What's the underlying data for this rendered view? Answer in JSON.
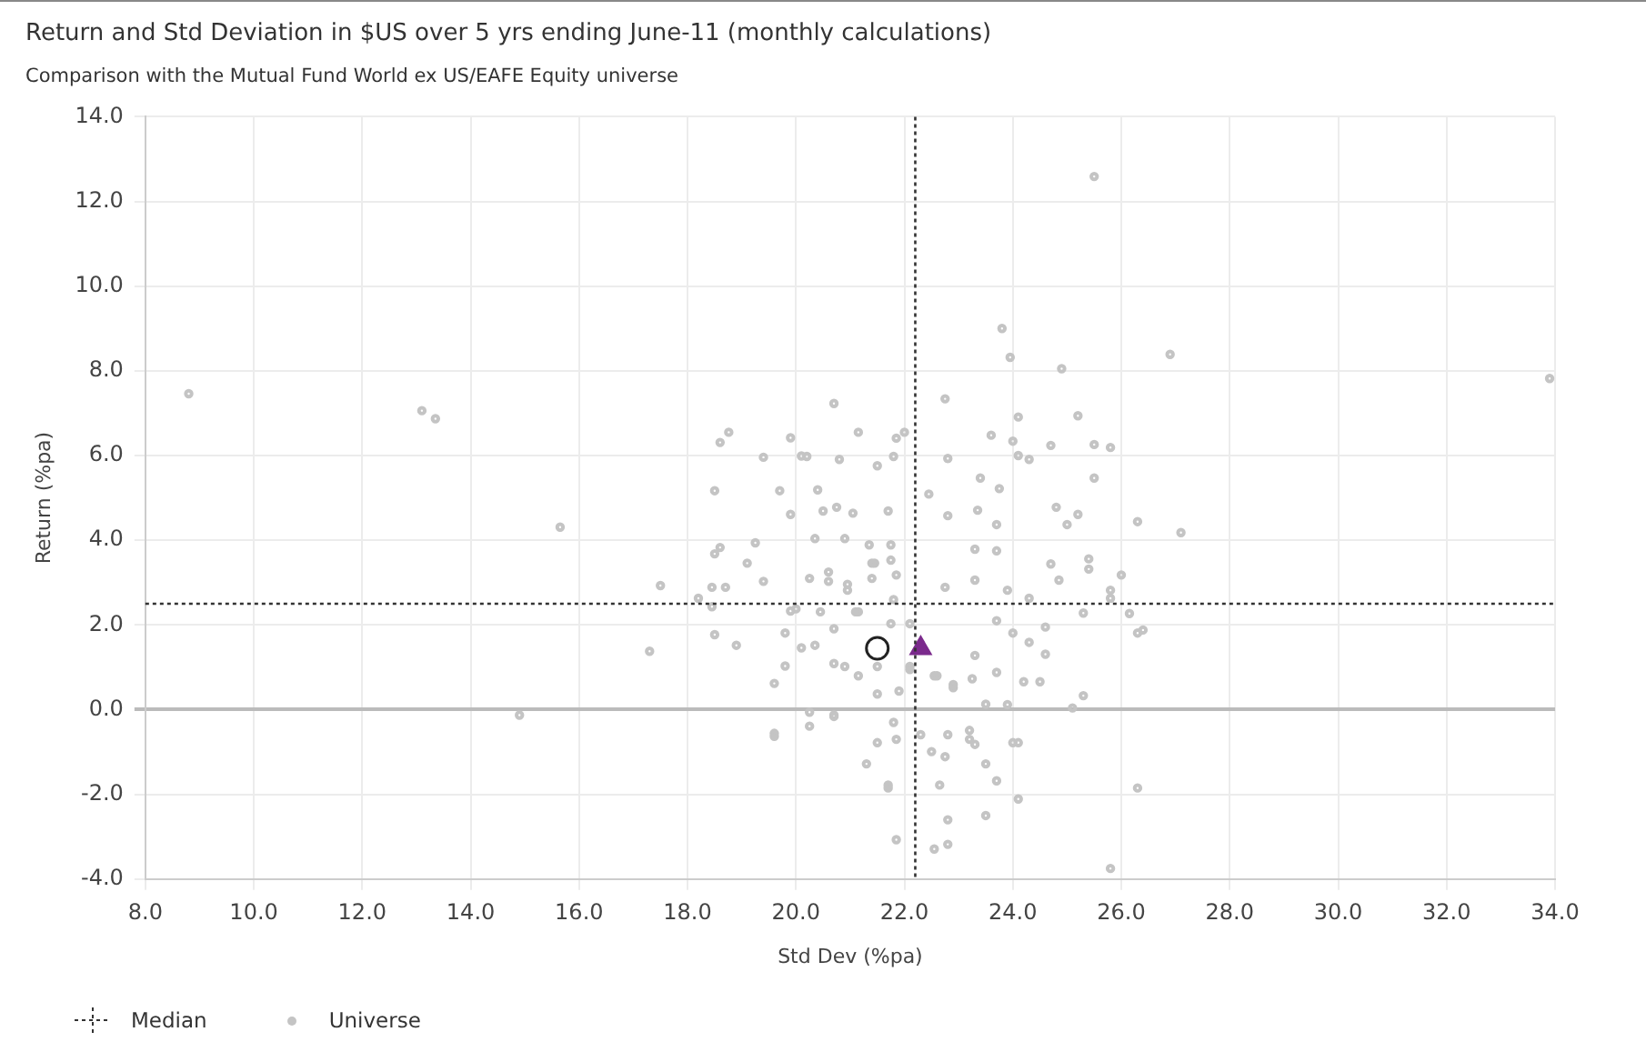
{
  "chart_data": {
    "type": "scatter",
    "title": "Return and Std Deviation in $US over 5 yrs ending June-11 (monthly calculations)",
    "subtitle": "Comparison with the Mutual Fund World ex US/EAFE Equity universe",
    "xlabel": "Std Dev (%pa)",
    "ylabel": "Return (%pa)",
    "xlim": [
      8,
      34
    ],
    "xticks": [
      {
        "value": 8,
        "label": "8.0"
      },
      {
        "value": 10,
        "label": "10.0"
      },
      {
        "value": 12,
        "label": "12.0"
      },
      {
        "value": 14,
        "label": "14.0"
      },
      {
        "value": 16,
        "label": "16.0"
      },
      {
        "value": 18,
        "label": "18.0"
      },
      {
        "value": 20,
        "label": "20.0"
      },
      {
        "value": 22,
        "label": "22.0"
      },
      {
        "value": 24,
        "label": "24.0"
      },
      {
        "value": 26,
        "label": "26.0"
      },
      {
        "value": 28,
        "label": "28.0"
      },
      {
        "value": 30,
        "label": "30.0"
      },
      {
        "value": 32,
        "label": "32.0"
      },
      {
        "value": 34,
        "label": "34.0"
      }
    ],
    "ylim": [
      -4,
      14
    ],
    "yticks": [
      {
        "value": -4,
        "label": "-4.0"
      },
      {
        "value": -2,
        "label": "-2.0"
      },
      {
        "value": 0,
        "label": "0.0"
      },
      {
        "value": 2,
        "label": "2.0"
      },
      {
        "value": 4,
        "label": "4.0"
      },
      {
        "value": 6,
        "label": "6.0"
      },
      {
        "value": 8,
        "label": "8.0"
      },
      {
        "value": 10,
        "label": "10.0"
      },
      {
        "value": 12,
        "label": "12.0"
      },
      {
        "value": 14,
        "label": "14.0"
      }
    ],
    "grid": true,
    "legend": "bottom",
    "ref_lines": [
      {
        "axis": "x",
        "value": 22.2,
        "label": "Median",
        "color": "#333333",
        "line_style": "dotted"
      },
      {
        "axis": "y",
        "value": 2.5,
        "color": "#333333",
        "line_style": "dotted"
      }
    ],
    "series": [
      {
        "name": "Universe",
        "color": "#c4c4c4",
        "marker": "circle",
        "x": [
          8.8,
          13.1,
          13.35,
          15.65,
          14.9,
          17.3,
          17.5,
          18.2,
          18.45,
          18.45,
          18.7,
          18.5,
          18.9,
          18.5,
          18.6,
          18.5,
          18.6,
          18.76,
          19.1,
          19.25,
          19.4,
          19.4,
          19.7,
          19.9,
          20.1,
          19.9,
          19.6,
          19.8,
          19.8,
          19.9,
          20.1,
          19.6,
          25.5,
          23.8,
          23.95,
          24.9,
          26.9,
          33.9,
          22.75,
          25.2,
          20.7,
          24.1,
          23.6,
          24.0,
          24.7,
          25.5,
          25.8,
          24.1,
          24.3,
          22.8,
          25.5,
          23.4,
          23.75,
          22.45,
          26.3,
          27.1,
          24.8,
          25.2,
          25.0,
          23.35,
          23.7,
          22.8,
          23.3,
          23.7,
          24.7,
          24.85,
          25.4,
          25.4,
          26.0,
          25.8,
          25.8,
          24.3,
          23.9,
          23.3,
          22.75,
          25.3,
          26.15,
          26.3,
          26.4,
          24.3,
          24.6,
          24.6,
          24.0,
          23.7,
          23.3,
          23.7,
          24.2,
          24.5,
          25.3,
          25.1,
          23.5,
          23.9,
          22.9,
          22.6,
          21.15,
          21.85,
          22.0,
          20.8,
          21.5,
          21.8,
          20.2,
          20.4,
          20.5,
          20.75,
          21.05,
          21.7,
          20.9,
          21.35,
          21.75,
          20.35,
          21.45,
          21.75,
          20.6,
          20.95,
          21.4,
          21.8,
          21.1,
          20.7,
          20.35,
          20.9,
          21.15,
          21.5,
          21.9,
          22.1,
          20.7,
          20.25,
          21.75,
          22.1,
          21.5,
          21.85,
          21.3,
          21.7,
          21.85,
          22.5,
          22.75,
          22.8,
          22.65,
          22.8,
          22.55,
          22.8,
          23.2,
          23.3,
          23.5,
          23.7,
          23.5,
          24.0,
          24.1,
          24.1,
          26.3,
          25.8,
          20.25,
          20.7,
          22.3,
          21.8,
          23.2,
          21.4,
          21.85,
          20.95,
          20.6,
          20.25,
          20.0,
          20.45,
          21.15,
          20.7,
          21.5,
          22.1,
          22.55,
          22.9,
          23.25,
          19.6,
          21.7
        ],
        "values": [
          7.46,
          7.06,
          6.87,
          4.31,
          -0.13,
          1.38,
          2.93,
          2.63,
          2.43,
          2.89,
          2.89,
          1.77,
          1.52,
          3.68,
          3.83,
          5.17,
          6.31,
          6.55,
          3.46,
          3.94,
          3.03,
          5.96,
          5.17,
          6.42,
          5.99,
          4.61,
          0.62,
          1.03,
          1.81,
          2.33,
          1.46,
          -0.63,
          12.59,
          9.0,
          8.32,
          8.05,
          8.39,
          7.82,
          7.34,
          6.94,
          7.23,
          6.91,
          6.48,
          6.34,
          6.24,
          6.26,
          6.19,
          6.0,
          5.91,
          5.93,
          5.47,
          5.47,
          5.22,
          5.09,
          4.44,
          4.18,
          4.78,
          4.61,
          4.37,
          4.71,
          4.37,
          4.58,
          3.79,
          3.75,
          3.44,
          3.06,
          3.56,
          3.32,
          3.18,
          2.82,
          2.63,
          2.63,
          2.82,
          3.06,
          2.89,
          2.28,
          2.27,
          1.81,
          1.88,
          1.59,
          1.31,
          1.95,
          1.81,
          2.1,
          1.28,
          0.88,
          0.66,
          0.66,
          0.33,
          0.04,
          0.13,
          0.12,
          0.52,
          0.8,
          6.55,
          6.41,
          6.55,
          5.91,
          5.76,
          5.98,
          5.98,
          5.19,
          4.69,
          4.78,
          4.64,
          4.69,
          4.04,
          3.89,
          3.89,
          4.04,
          3.46,
          3.53,
          3.25,
          2.82,
          3.1,
          2.6,
          2.31,
          1.91,
          1.52,
          1.02,
          0.8,
          0.37,
          0.44,
          0.95,
          -0.13,
          -0.06,
          2.03,
          2.03,
          -0.78,
          -0.7,
          -1.28,
          -1.85,
          -3.07,
          -0.99,
          -1.11,
          -0.59,
          -1.78,
          -2.6,
          -3.29,
          -3.18,
          -0.7,
          -0.82,
          -1.28,
          -1.68,
          -2.5,
          -0.78,
          -0.78,
          -2.11,
          -1.85,
          -3.75,
          -0.39,
          -0.16,
          -0.59,
          -0.3,
          -0.49,
          3.46,
          3.18,
          2.96,
          3.03,
          3.1,
          2.38,
          2.31,
          2.31,
          1.09,
          1.02,
          1.02,
          0.8,
          0.59,
          0.73,
          -0.56,
          -1.78
        ]
      },
      {
        "color": "#7b2a8c",
        "marker": "triangle",
        "x": [
          22.3
        ],
        "values": [
          1.45
        ]
      },
      {
        "color": "#222222",
        "marker": "circle",
        "x": [
          21.5
        ],
        "values": [
          1.45
        ]
      }
    ]
  }
}
